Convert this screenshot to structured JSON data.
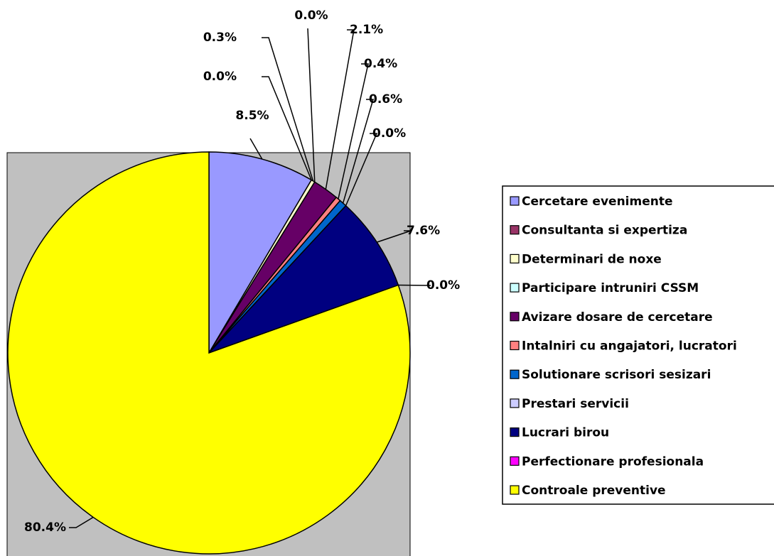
{
  "chart_data": {
    "type": "pie",
    "categories": [
      "Cercetare evenimente",
      "Consultanta si expertiza",
      "Determinari de noxe",
      "Participare intruniri CSSM",
      "Avizare dosare de cercetare",
      "Intalniri cu angajatori, lucratori",
      "Solutionare scrisori sesizari",
      "Prestari servicii",
      "Lucrari birou",
      "Perfectionare profesionala",
      "Controale preventive"
    ],
    "values": [
      8.5,
      0.0,
      0.3,
      0.0,
      2.1,
      0.4,
      0.6,
      0.0,
      7.6,
      0.0,
      80.4
    ],
    "value_labels": [
      "8.5%",
      "0.0%",
      "0.3%",
      "0.0%",
      "2.1%",
      "0.4%",
      "0.6%",
      "0.0%",
      "7.6%",
      "0.0%",
      "80.4%"
    ],
    "colors": [
      "#9999ff",
      "#993366",
      "#ffffcc",
      "#ccffff",
      "#660066",
      "#ff8080",
      "#0066cc",
      "#ccccff",
      "#000080",
      "#ff00ff",
      "#ffff00"
    ],
    "legend": "right"
  }
}
